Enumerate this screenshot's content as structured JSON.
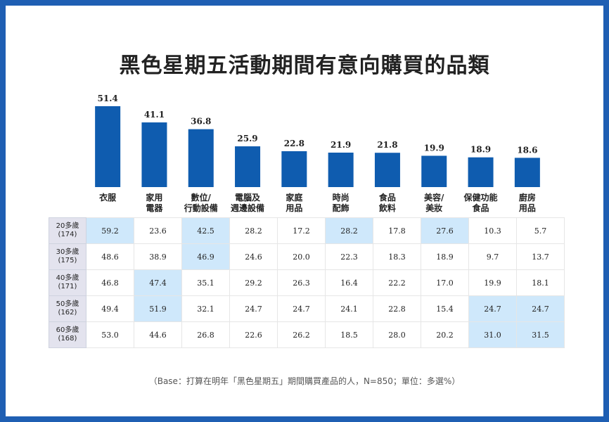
{
  "chart_data": [
    {
      "type": "bar",
      "title": "黑色星期五活動期間有意向購買的品類",
      "categories": [
        [
          "衣服"
        ],
        [
          "家用",
          "電器"
        ],
        [
          "數位/",
          "行動設備"
        ],
        [
          "電腦及",
          "週邊設備"
        ],
        [
          "家庭",
          "用品"
        ],
        [
          "時尚",
          "配飾"
        ],
        [
          "食品",
          "飲料"
        ],
        [
          "美容/",
          "美妝"
        ],
        [
          "保健功能",
          "食品"
        ],
        [
          "廚房",
          "用品"
        ]
      ],
      "values": [
        51.4,
        41.1,
        36.8,
        25.9,
        22.8,
        21.9,
        21.8,
        19.9,
        18.9,
        18.6
      ],
      "value_labels": [
        "51.4",
        "41.1",
        "36.8",
        "25.9",
        "22.8",
        "21.9",
        "21.8",
        "19.9",
        "18.9",
        "18.6"
      ],
      "bar_color": "#0f5caf"
    },
    {
      "type": "table",
      "rows": [
        {
          "label": [
            "20多歲",
            "(174)"
          ],
          "values": [
            "59.2",
            "23.6",
            "42.5",
            "28.2",
            "17.2",
            "28.2",
            "17.8",
            "27.6",
            "10.3",
            "5.7"
          ],
          "highlight": [
            0,
            2,
            5,
            7
          ]
        },
        {
          "label": [
            "30多歲",
            "(175)"
          ],
          "values": [
            "48.6",
            "38.9",
            "46.9",
            "24.6",
            "20.0",
            "22.3",
            "18.3",
            "18.9",
            "9.7",
            "13.7"
          ],
          "highlight": [
            2
          ]
        },
        {
          "label": [
            "40多歲",
            "(171)"
          ],
          "values": [
            "46.8",
            "47.4",
            "35.1",
            "29.2",
            "26.3",
            "16.4",
            "22.2",
            "17.0",
            "19.9",
            "18.1"
          ],
          "highlight": [
            1
          ]
        },
        {
          "label": [
            "50多歲",
            "(162)"
          ],
          "values": [
            "49.4",
            "51.9",
            "32.1",
            "24.7",
            "24.7",
            "24.1",
            "22.8",
            "15.4",
            "24.7",
            "24.7"
          ],
          "highlight": [
            1,
            8,
            9
          ]
        },
        {
          "label": [
            "60多歲",
            "(168)"
          ],
          "values": [
            "53.0",
            "44.6",
            "26.8",
            "22.6",
            "26.2",
            "18.5",
            "28.0",
            "20.2",
            "31.0",
            "31.5"
          ],
          "highlight": [
            8,
            9
          ]
        }
      ],
      "highlight_color": "#cfe8fb"
    }
  ],
  "footnote": "（Base：打算在明年「黑色星期五」期間購買產品的人，N=850；單位：多選%）"
}
